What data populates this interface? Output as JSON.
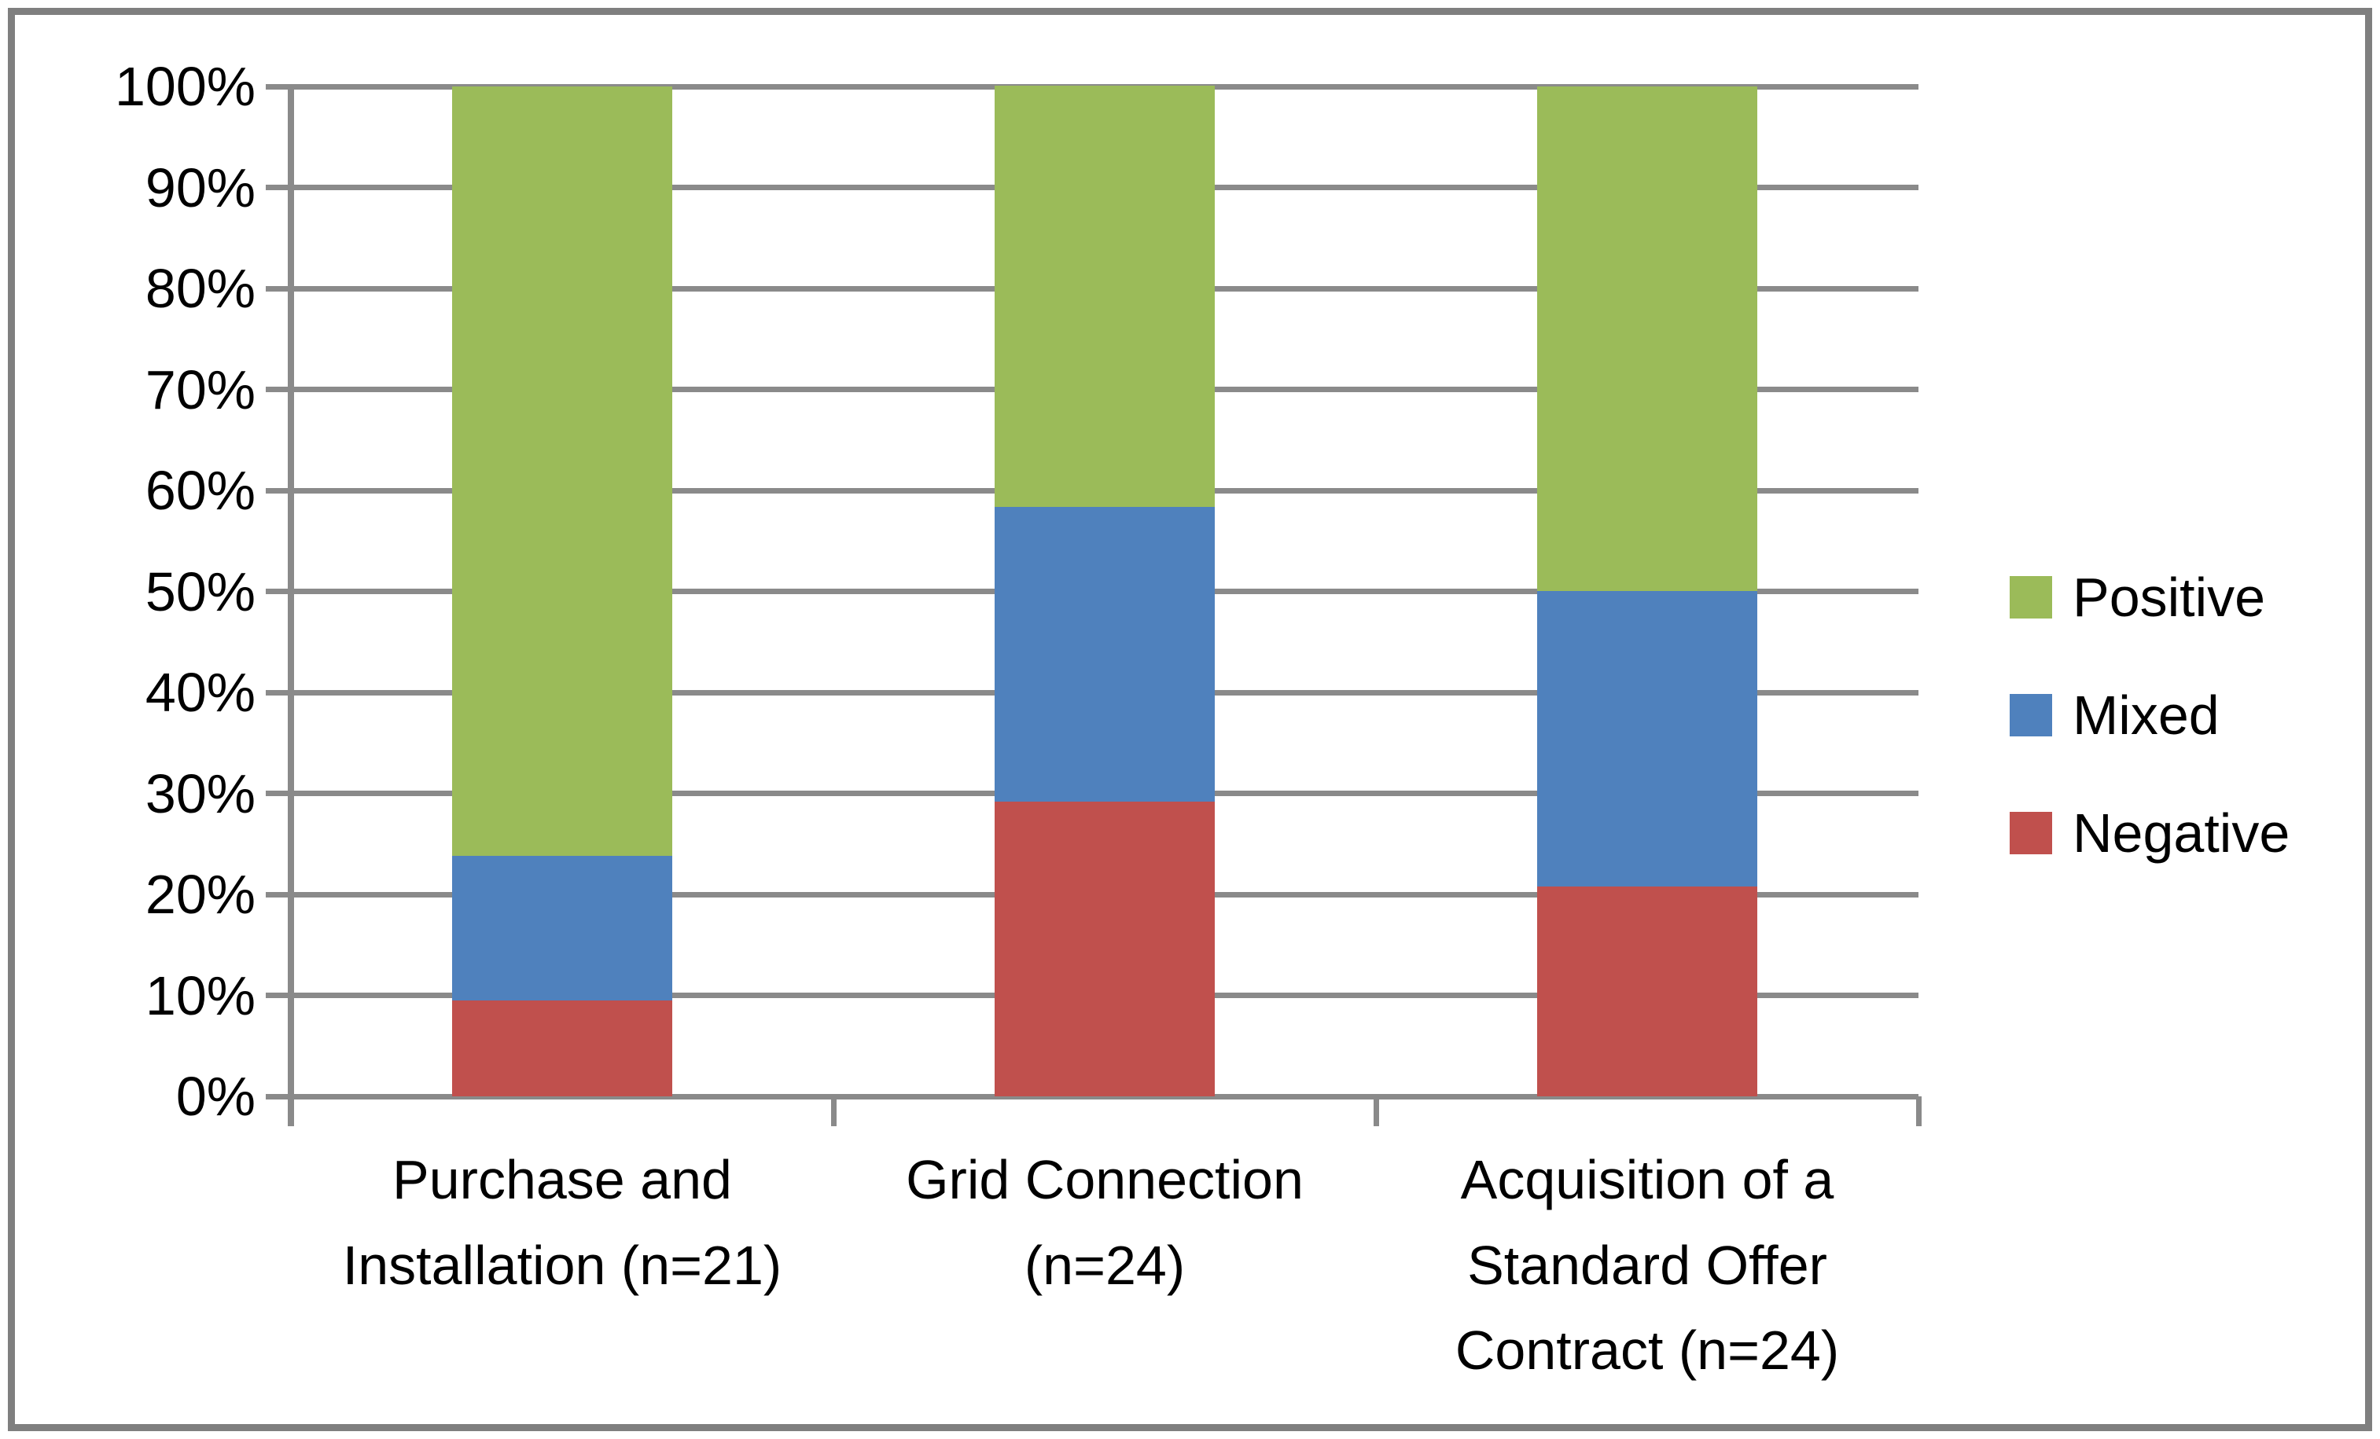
{
  "chart_data": {
    "type": "bar",
    "variant": "stacked-100-percent",
    "title": "",
    "xlabel": "",
    "ylabel": "",
    "grid": true,
    "legend_position": "right",
    "categories": [
      "Purchase and Installation (n=21)",
      "Grid Connection (n=24)",
      "Acquisition of a Standard Offer Contract (n=24)"
    ],
    "series": [
      {
        "name": "Positive",
        "color": "#9BBB59",
        "values": [
          76.2,
          41.7,
          50.0
        ]
      },
      {
        "name": "Mixed",
        "color": "#4F81BD",
        "values": [
          14.3,
          29.2,
          29.2
        ]
      },
      {
        "name": "Negative",
        "color": "#C0504D",
        "values": [
          9.5,
          29.2,
          20.8
        ]
      }
    ],
    "stack_order_bottom_to_top": [
      "Negative",
      "Mixed",
      "Positive"
    ],
    "y_axis": {
      "min": 0,
      "max": 100,
      "step": 10,
      "tick_labels": [
        "0%",
        "10%",
        "20%",
        "30%",
        "40%",
        "50%",
        "60%",
        "70%",
        "80%",
        "90%",
        "100%"
      ]
    },
    "legend": [
      "Positive",
      "Mixed",
      "Negative"
    ]
  },
  "colors": {
    "frame_border": "#7f7f7f",
    "gridline": "#8a8a8a",
    "axis_line": "#8a8a8a",
    "background": "#ffffff",
    "text": "#000000"
  }
}
